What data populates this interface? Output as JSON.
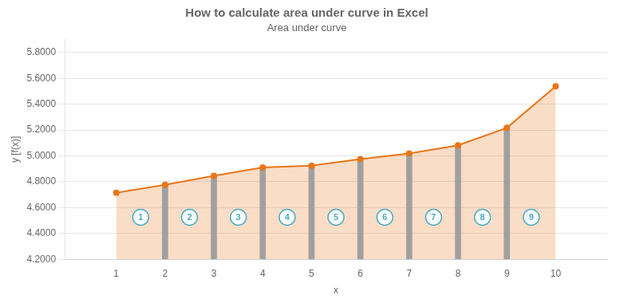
{
  "chart_data": {
    "type": "line",
    "title": "How to calculate area under curve in Excel",
    "subtitle": "Area under curve",
    "xlabel": "x",
    "ylabel": "y [f(x)]",
    "x": [
      1,
      2,
      3,
      4,
      5,
      6,
      7,
      8,
      9,
      10
    ],
    "series": [
      {
        "type": "area",
        "color": "#E8761A",
        "marker": "o",
        "values": [
          4.7143,
          4.7767,
          4.8459,
          4.9105,
          4.9245,
          4.975,
          5.018,
          5.0818,
          5.217,
          5.5387
        ]
      },
      {
        "type": "bar",
        "color": "#A0A0A0",
        "values": [
          null,
          4.7767,
          4.8459,
          4.9105,
          4.9245,
          4.975,
          5.018,
          5.0818,
          5.217,
          null
        ]
      }
    ],
    "xlim": [
      0.5,
      10.5
    ],
    "xticks": [
      1,
      2,
      3,
      4,
      5,
      6,
      7,
      8,
      9,
      10
    ],
    "ylim": [
      4.2,
      5.9
    ],
    "yticks": [
      {
        "value": 4.2,
        "label": "4.2000"
      },
      {
        "value": 4.4,
        "label": "4.4000"
      },
      {
        "value": 4.6,
        "label": "4.6000"
      },
      {
        "value": 4.8,
        "label": "4.8000"
      },
      {
        "value": 5.0,
        "label": "5.0000"
      },
      {
        "value": 5.2,
        "label": "5.2000"
      },
      {
        "value": 5.4,
        "label": "5.4000"
      },
      {
        "value": 5.6,
        "label": "5.6000"
      },
      {
        "value": 5.8,
        "label": "5.8000"
      }
    ],
    "grid": "y",
    "annotations": [
      {
        "x": 1.5,
        "y": 4.525,
        "text": "1"
      },
      {
        "x": 2.5,
        "y": 4.525,
        "text": "2"
      },
      {
        "x": 3.5,
        "y": 4.525,
        "text": "3"
      },
      {
        "x": 4.5,
        "y": 4.525,
        "text": "4"
      },
      {
        "x": 5.5,
        "y": 4.525,
        "text": "5"
      },
      {
        "x": 6.5,
        "y": 4.525,
        "text": "6"
      },
      {
        "x": 7.5,
        "y": 4.525,
        "text": "7"
      },
      {
        "x": 8.5,
        "y": 4.525,
        "text": "8"
      },
      {
        "x": 9.5,
        "y": 4.525,
        "text": "9"
      }
    ]
  }
}
